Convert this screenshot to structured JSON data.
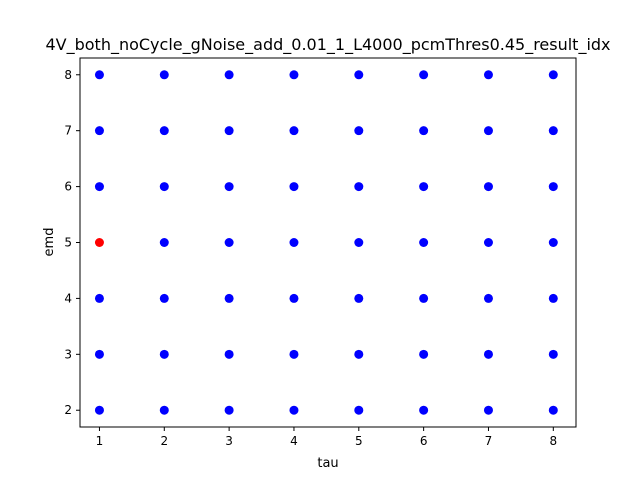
{
  "chart_data": {
    "type": "scatter",
    "title": "4V_both_noCycle_gNoise_add_0.01_1_L4000_pcmThres0.45_result_idx",
    "xlabel": "tau",
    "ylabel": "emd",
    "xlim": [
      0.7,
      8.35
    ],
    "ylim": [
      1.7,
      8.3
    ],
    "xticks": [
      "1",
      "2",
      "3",
      "4",
      "5",
      "6",
      "7",
      "8"
    ],
    "yticks": [
      "2",
      "3",
      "4",
      "5",
      "6",
      "7",
      "8"
    ],
    "grid": false,
    "series": [
      {
        "color": "#0000ff",
        "points": [
          [
            1,
            2
          ],
          [
            1,
            3
          ],
          [
            1,
            4
          ],
          [
            1,
            6
          ],
          [
            1,
            7
          ],
          [
            1,
            8
          ],
          [
            2,
            2
          ],
          [
            2,
            3
          ],
          [
            2,
            4
          ],
          [
            2,
            5
          ],
          [
            2,
            6
          ],
          [
            2,
            7
          ],
          [
            2,
            8
          ],
          [
            3,
            2
          ],
          [
            3,
            3
          ],
          [
            3,
            4
          ],
          [
            3,
            5
          ],
          [
            3,
            6
          ],
          [
            3,
            7
          ],
          [
            3,
            8
          ],
          [
            4,
            2
          ],
          [
            4,
            3
          ],
          [
            4,
            4
          ],
          [
            4,
            5
          ],
          [
            4,
            6
          ],
          [
            4,
            7
          ],
          [
            4,
            8
          ],
          [
            5,
            2
          ],
          [
            5,
            3
          ],
          [
            5,
            4
          ],
          [
            5,
            5
          ],
          [
            5,
            6
          ],
          [
            5,
            7
          ],
          [
            5,
            8
          ],
          [
            6,
            2
          ],
          [
            6,
            3
          ],
          [
            6,
            4
          ],
          [
            6,
            5
          ],
          [
            6,
            6
          ],
          [
            6,
            7
          ],
          [
            6,
            8
          ],
          [
            7,
            2
          ],
          [
            7,
            3
          ],
          [
            7,
            4
          ],
          [
            7,
            5
          ],
          [
            7,
            6
          ],
          [
            7,
            7
          ],
          [
            7,
            8
          ],
          [
            8,
            2
          ],
          [
            8,
            3
          ],
          [
            8,
            4
          ],
          [
            8,
            5
          ],
          [
            8,
            6
          ],
          [
            8,
            7
          ],
          [
            8,
            8
          ]
        ]
      },
      {
        "color": "#ff0000",
        "points": [
          [
            1,
            5
          ]
        ]
      }
    ]
  }
}
